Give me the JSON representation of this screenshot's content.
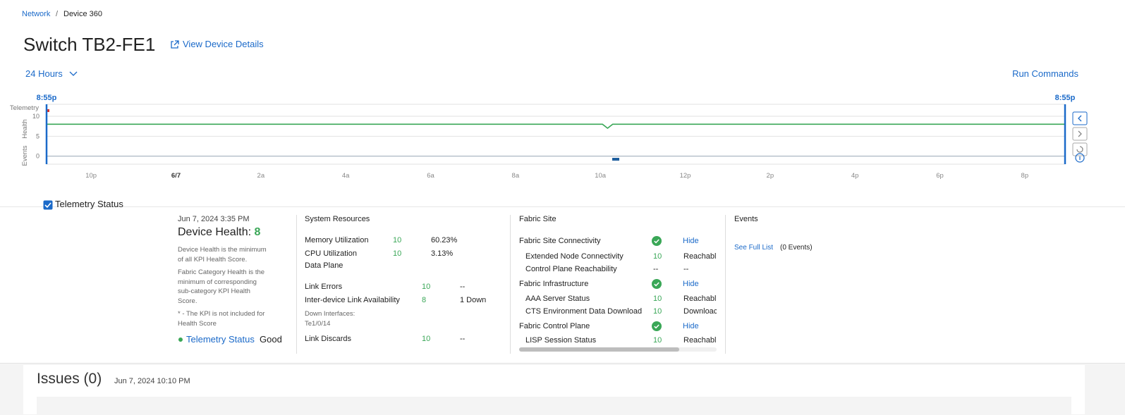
{
  "breadcrumb": {
    "items": [
      "Network",
      "Device 360"
    ],
    "separator": "/"
  },
  "header": {
    "title": "Switch TB2-FE1",
    "details_link": "View Device Details",
    "time_range": "24 Hours",
    "run_commands": "Run Commands"
  },
  "timeline": {
    "start_label": "8:55p",
    "end_label": "8:55p",
    "row_labels": [
      "Telemetry",
      "Health",
      "Events"
    ],
    "xlim": [
      0,
      24
    ],
    "xticks": [
      {
        "value": 1.05,
        "label": "10p"
      },
      {
        "value": 3.05,
        "label": "6/7",
        "bold": true
      },
      {
        "value": 5.05,
        "label": "2a"
      },
      {
        "value": 7.05,
        "label": "4a"
      },
      {
        "value": 9.05,
        "label": "6a"
      },
      {
        "value": 11.05,
        "label": "8a"
      },
      {
        "value": 13.05,
        "label": "10a"
      },
      {
        "value": 15.05,
        "label": "12p"
      },
      {
        "value": 17.05,
        "label": "2p"
      },
      {
        "value": 19.05,
        "label": "4p"
      },
      {
        "value": 21.05,
        "label": "6p"
      },
      {
        "value": 23.05,
        "label": "8p"
      }
    ],
    "ylim": [
      -2,
      13
    ],
    "yticks": [
      0,
      5,
      10
    ],
    "health": {
      "color": "#3aa757",
      "x": [
        0,
        13.1,
        13.22,
        13.34,
        24
      ],
      "values": [
        8,
        8,
        7,
        8,
        8
      ]
    }
  },
  "telemetry_toggle": "Telemetry Status",
  "health": {
    "date": "Jun 7, 2024 3:35 PM",
    "label": "Device Health:",
    "score": 8,
    "notes": [
      "Device Health is the minimum of all KPI Health Score.",
      "Fabric Category Health is the minimum of corresponding sub-category KPI Health Score.",
      "* - The KPI is not included for Health Score"
    ],
    "telemetry_link": "Telemetry Status",
    "telemetry_state": "Good"
  },
  "system_resources": {
    "title": "System Resources",
    "rows": [
      {
        "name": "Memory Utilization",
        "score": 10,
        "value": "60.23%"
      },
      {
        "name": "CPU Utilization",
        "score": 10,
        "value": "3.13%"
      }
    ],
    "data_plane": {
      "title": "Data Plane",
      "rows": [
        {
          "name": "Link Errors",
          "score": 10,
          "value": "--"
        },
        {
          "name": "Inter-device Link Availability",
          "score": 8,
          "value": "1 Down",
          "note_title": "Down Interfaces:",
          "note": "Te1/0/14"
        },
        {
          "name": "Link Discards",
          "score": 10,
          "value": "--"
        }
      ]
    }
  },
  "fabric_site": {
    "title": "Fabric Site",
    "groups": [
      {
        "name": "Fabric Site Connectivity",
        "action": "Hide",
        "items": [
          {
            "name": "Extended Node Connectivity",
            "score": 10,
            "status": "Reachabl"
          },
          {
            "name": "Control Plane Reachability",
            "score": "--",
            "status": "--"
          }
        ]
      },
      {
        "name": "Fabric Infrastructure",
        "action": "Hide",
        "items": [
          {
            "name": "AAA Server Status",
            "score": 10,
            "status": "Reachabl"
          },
          {
            "name": "CTS Environment Data Download",
            "score": 10,
            "status": "Downloac"
          }
        ]
      },
      {
        "name": "Fabric Control Plane",
        "action": "Hide",
        "items": [
          {
            "name": "LISP Session Status",
            "score": 10,
            "status": "Reachabl"
          }
        ]
      }
    ]
  },
  "events": {
    "title": "Events",
    "link": "See Full List",
    "count": "(0 Events)"
  },
  "issues": {
    "title": "Issues (0)",
    "date": "Jun 7, 2024 10:10 PM"
  }
}
